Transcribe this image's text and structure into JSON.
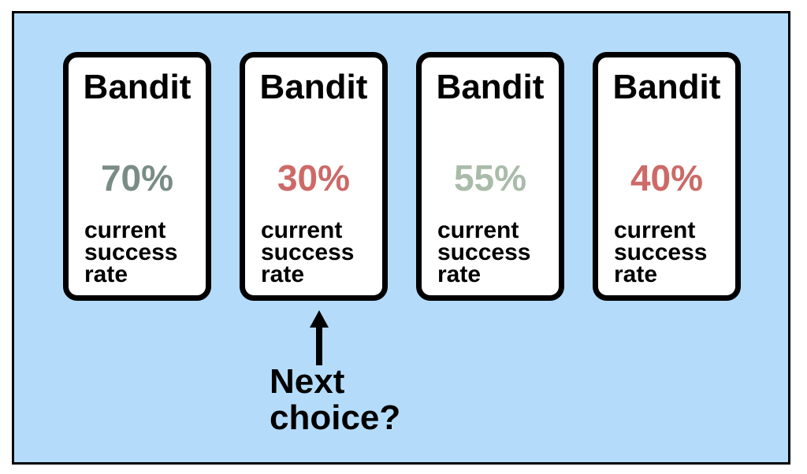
{
  "cards": [
    {
      "title": "Bandit",
      "rate": "70%",
      "rate_color": "#7a8c86",
      "caption": [
        "current",
        "success",
        "rate"
      ]
    },
    {
      "title": "Bandit",
      "rate": "30%",
      "rate_color": "#cc6a68",
      "caption": [
        "current",
        "success",
        "rate"
      ]
    },
    {
      "title": "Bandit",
      "rate": "55%",
      "rate_color": "#a9bba9",
      "caption": [
        "current",
        "success",
        "rate"
      ]
    },
    {
      "title": "Bandit",
      "rate": "40%",
      "rate_color": "#cc6a68",
      "caption": [
        "current",
        "success",
        "rate"
      ]
    }
  ],
  "pointer": {
    "icon": "up-arrow-icon",
    "label": [
      "Next",
      "choice?"
    ]
  }
}
